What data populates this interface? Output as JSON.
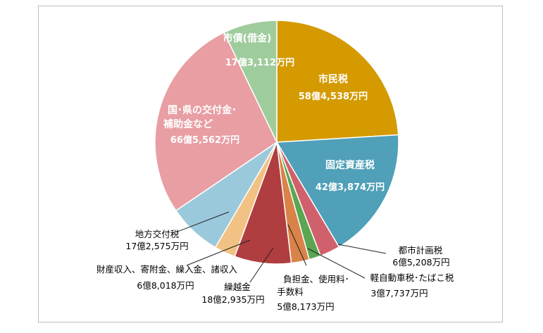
{
  "chart_data": {
    "type": "pie",
    "unit": "億円",
    "slices": [
      {
        "key": "shiminzei",
        "name": "市民税",
        "amount": "58億4,538万円",
        "value": 58.4538,
        "color": "#d49a00"
      },
      {
        "key": "kotei",
        "name": "固定資産税",
        "amount": "42億3,874万円",
        "value": 42.3874,
        "color": "#4fa0b8"
      },
      {
        "key": "toshikeikaku",
        "name": "都市計画税",
        "amount": "6億5,208万円",
        "value": 6.5208,
        "color": "#d0616c"
      },
      {
        "key": "keijidosha",
        "name": "軽自動車税･たばこ税",
        "amount": "3億7,737万円",
        "value": 3.7737,
        "color": "#5aa653"
      },
      {
        "key": "futankin",
        "name_line1": "負担金、使用料･",
        "name_line2": "手数料",
        "amount": "5億8,173万円",
        "value": 5.8173,
        "color": "#d98348"
      },
      {
        "key": "kurikoshi",
        "name": "繰越金",
        "amount": "18億2,935万円",
        "value": 18.2935,
        "color": "#b03d3f"
      },
      {
        "key": "zaisan",
        "name": "財産収入、寄附金、繰入金、諸収入",
        "amount": "6億8,018万円",
        "value": 6.8018,
        "color": "#f2c184"
      },
      {
        "key": "chihokofu",
        "name": "地方交付税",
        "amount": "17億2,575万円",
        "value": 17.2575,
        "color": "#9bc9dc"
      },
      {
        "key": "kuniken",
        "name_line1": "国･県の交付金･",
        "name_line2": "補助金など",
        "amount": "66億5,562万円",
        "value": 66.5562,
        "color": "#e89ea3"
      },
      {
        "key": "shisai",
        "name": "市債(借金)",
        "amount": "17億3,112万円",
        "value": 17.3112,
        "color": "#9fcc9c"
      }
    ]
  }
}
